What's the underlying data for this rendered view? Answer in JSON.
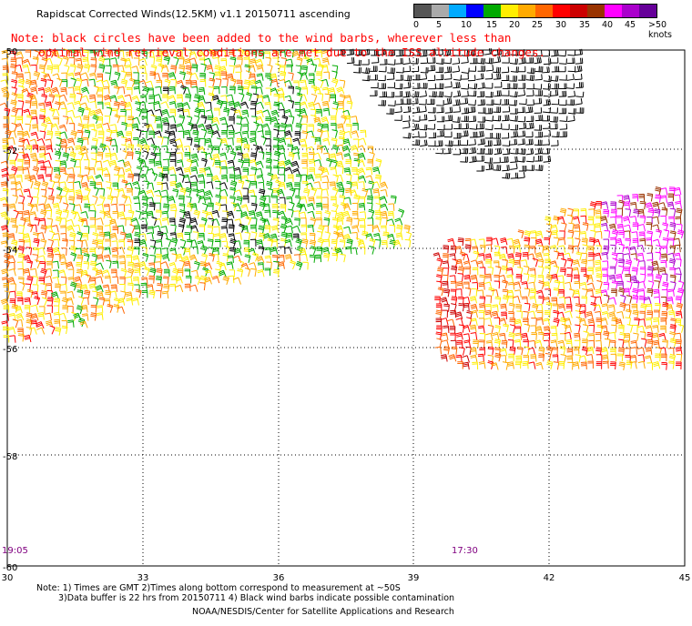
{
  "title": "Rapidscat Corrected Winds(12.5KM) v1.1 20150711 ascending",
  "note_line1": "Note: black circles have been added to the wind barbs, wherever less than",
  "note_line2": "    optimal wind retrieval conditions are met due to the ISS altitude changes.",
  "legend": {
    "ticks": [
      "0",
      "5",
      "10",
      "15",
      "20",
      "25",
      "30",
      "35",
      "40",
      "45",
      ">50 knots"
    ],
    "colors": [
      "#555555",
      "#aaaaaa",
      "#00aaff",
      "#0000ff",
      "#00aa00",
      "#ffee00",
      "#ffaa00",
      "#ff6600",
      "#ff0000",
      "#cc0000",
      "#993300",
      "#ff00ff",
      "#aa00cc",
      "#660099"
    ]
  },
  "map": {
    "lat_labels": [
      "-50",
      "-52",
      "-54",
      "-56",
      "-58",
      "-60"
    ],
    "lon_labels": [
      "30",
      "33",
      "36",
      "39",
      "42",
      "45"
    ],
    "times": [
      "19:05",
      "17:30"
    ]
  },
  "footer": {
    "line1": "Note: 1) Times are GMT 2)Times along bottom correspond to measurement at ~50S",
    "line2": "3)Data buffer is 22 hrs from 20150711 4) Black wind barbs indicate possible contamination",
    "line3": "NOAA/NESDIS/Center for Satellite Applications and Research"
  }
}
